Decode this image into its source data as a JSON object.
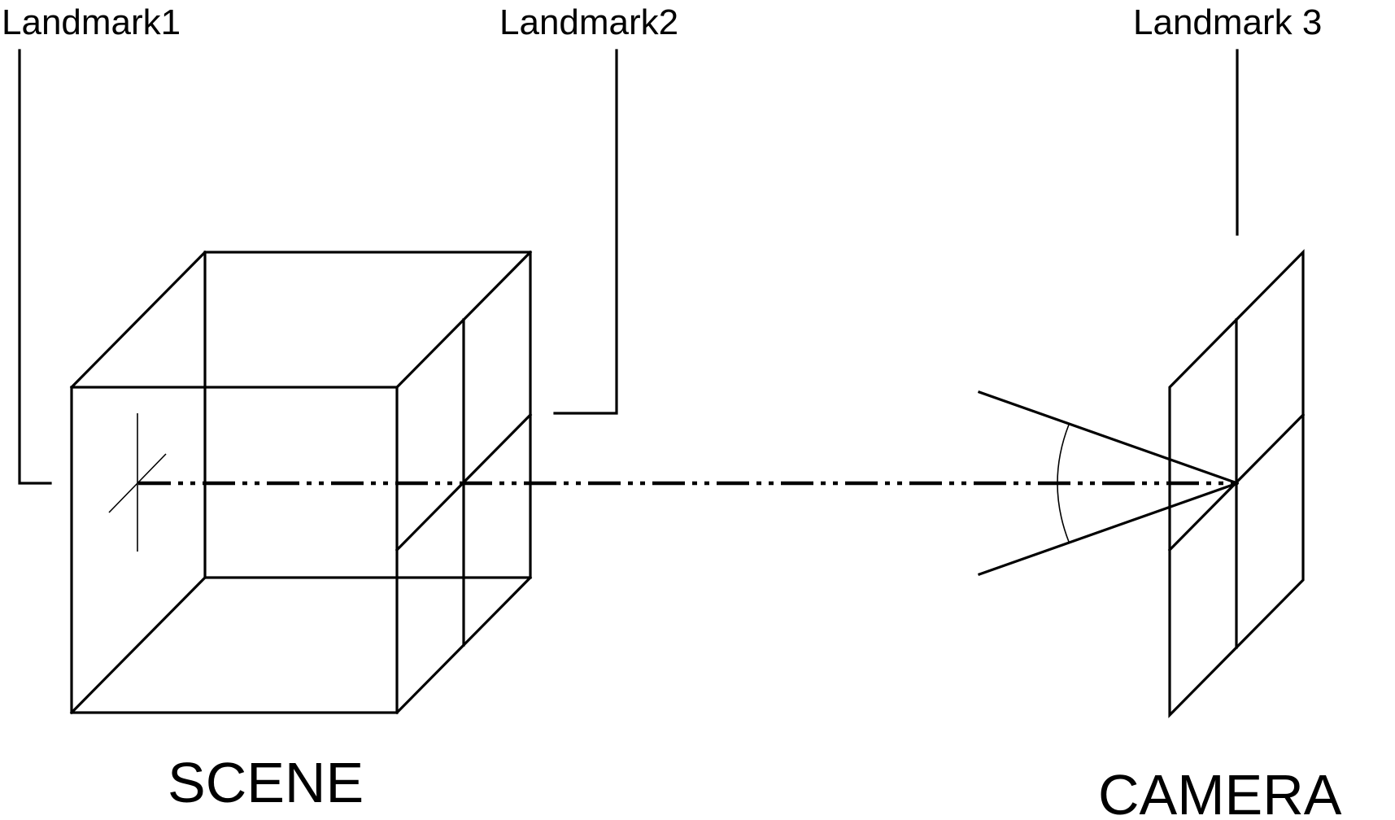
{
  "labels": {
    "landmark1": "Landmark1",
    "landmark2": "Landmark2",
    "landmark3": "Landmark 3",
    "scene": "SCENE",
    "camera": "CAMERA"
  }
}
